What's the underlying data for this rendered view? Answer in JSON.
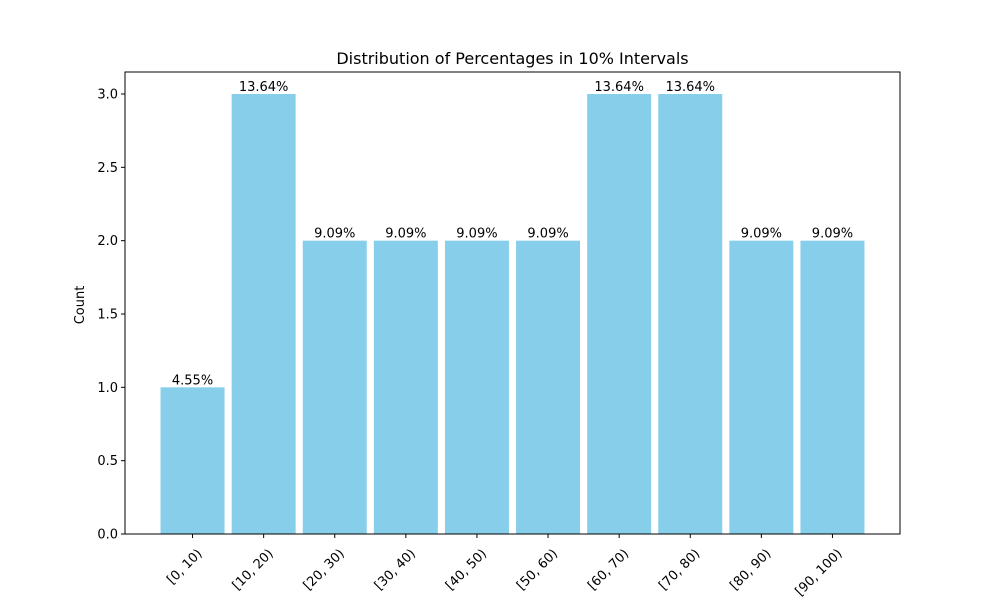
{
  "chart_data": {
    "type": "bar",
    "title": "Distribution of Percentages in 10% Intervals",
    "xlabel": "",
    "ylabel": "Count",
    "categories": [
      "[0, 10)",
      "[10, 20)",
      "[20, 30)",
      "[30, 40)",
      "[40, 50)",
      "[50, 60)",
      "[60, 70)",
      "[70, 80)",
      "[80, 90)",
      "[90, 100)"
    ],
    "values": [
      1,
      3,
      2,
      2,
      2,
      2,
      3,
      3,
      2,
      2
    ],
    "data_labels": [
      "4.55%",
      "13.64%",
      "9.09%",
      "9.09%",
      "9.09%",
      "9.09%",
      "13.64%",
      "13.64%",
      "9.09%",
      "9.09%"
    ],
    "yticks": [
      "0.0",
      "0.5",
      "1.0",
      "1.5",
      "2.0",
      "2.5",
      "3.0"
    ],
    "ylim": [
      0,
      3.15
    ],
    "grid": false,
    "bar_color": "#87ceeb"
  }
}
